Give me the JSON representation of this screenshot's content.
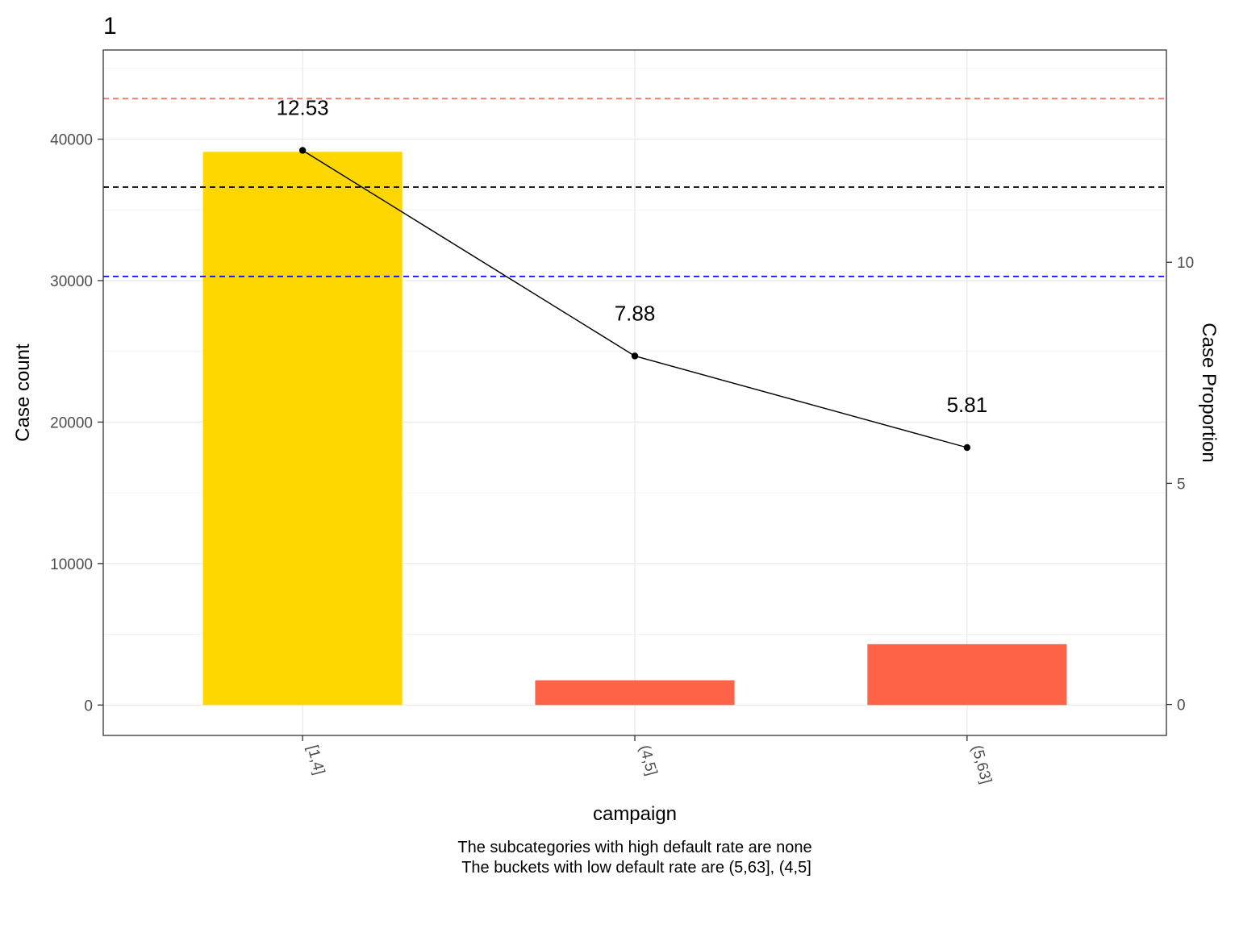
{
  "chart_data": {
    "type": "bar",
    "title": "1",
    "categories": [
      "[1,4]",
      "(4,5]",
      "(5,63]"
    ],
    "series": [
      {
        "values": [
          39100,
          1750,
          4300
        ],
        "colors": [
          "#FFD700",
          "#FF6347",
          "#FF6347"
        ]
      },
      {
        "type": "line",
        "axis": "secondary",
        "values": [
          12.53,
          7.88,
          5.81
        ],
        "labels": [
          "12.53",
          "7.88",
          "5.81"
        ],
        "color": "#000000"
      }
    ],
    "xlabel": "campaign",
    "ylabel": "Case count",
    "y2label": "Case Proportion",
    "ylim": [
      -2150,
      46300
    ],
    "y2lim": [
      -0.7,
      14.8
    ],
    "yticks": [
      0,
      10000,
      20000,
      30000,
      40000
    ],
    "ytick_labels": [
      "0",
      "10000",
      "20000",
      "30000",
      "40000"
    ],
    "y2ticks": [
      0,
      5,
      10
    ],
    "y2tick_labels": [
      "0",
      "5",
      "10"
    ],
    "reference_lines": [
      {
        "axis": "secondary",
        "value": 13.7,
        "color": "#E8776D",
        "style": "dashed"
      },
      {
        "axis": "secondary",
        "value": 11.7,
        "color": "#000000",
        "style": "dashed"
      },
      {
        "axis": "secondary",
        "value": 9.68,
        "color": "#0000FF",
        "style": "dashed"
      }
    ],
    "grid": true,
    "caption": [
      "The subcategories with high default rate are none",
      "The buckets with low default rate are (5,63], (4,5]"
    ]
  }
}
